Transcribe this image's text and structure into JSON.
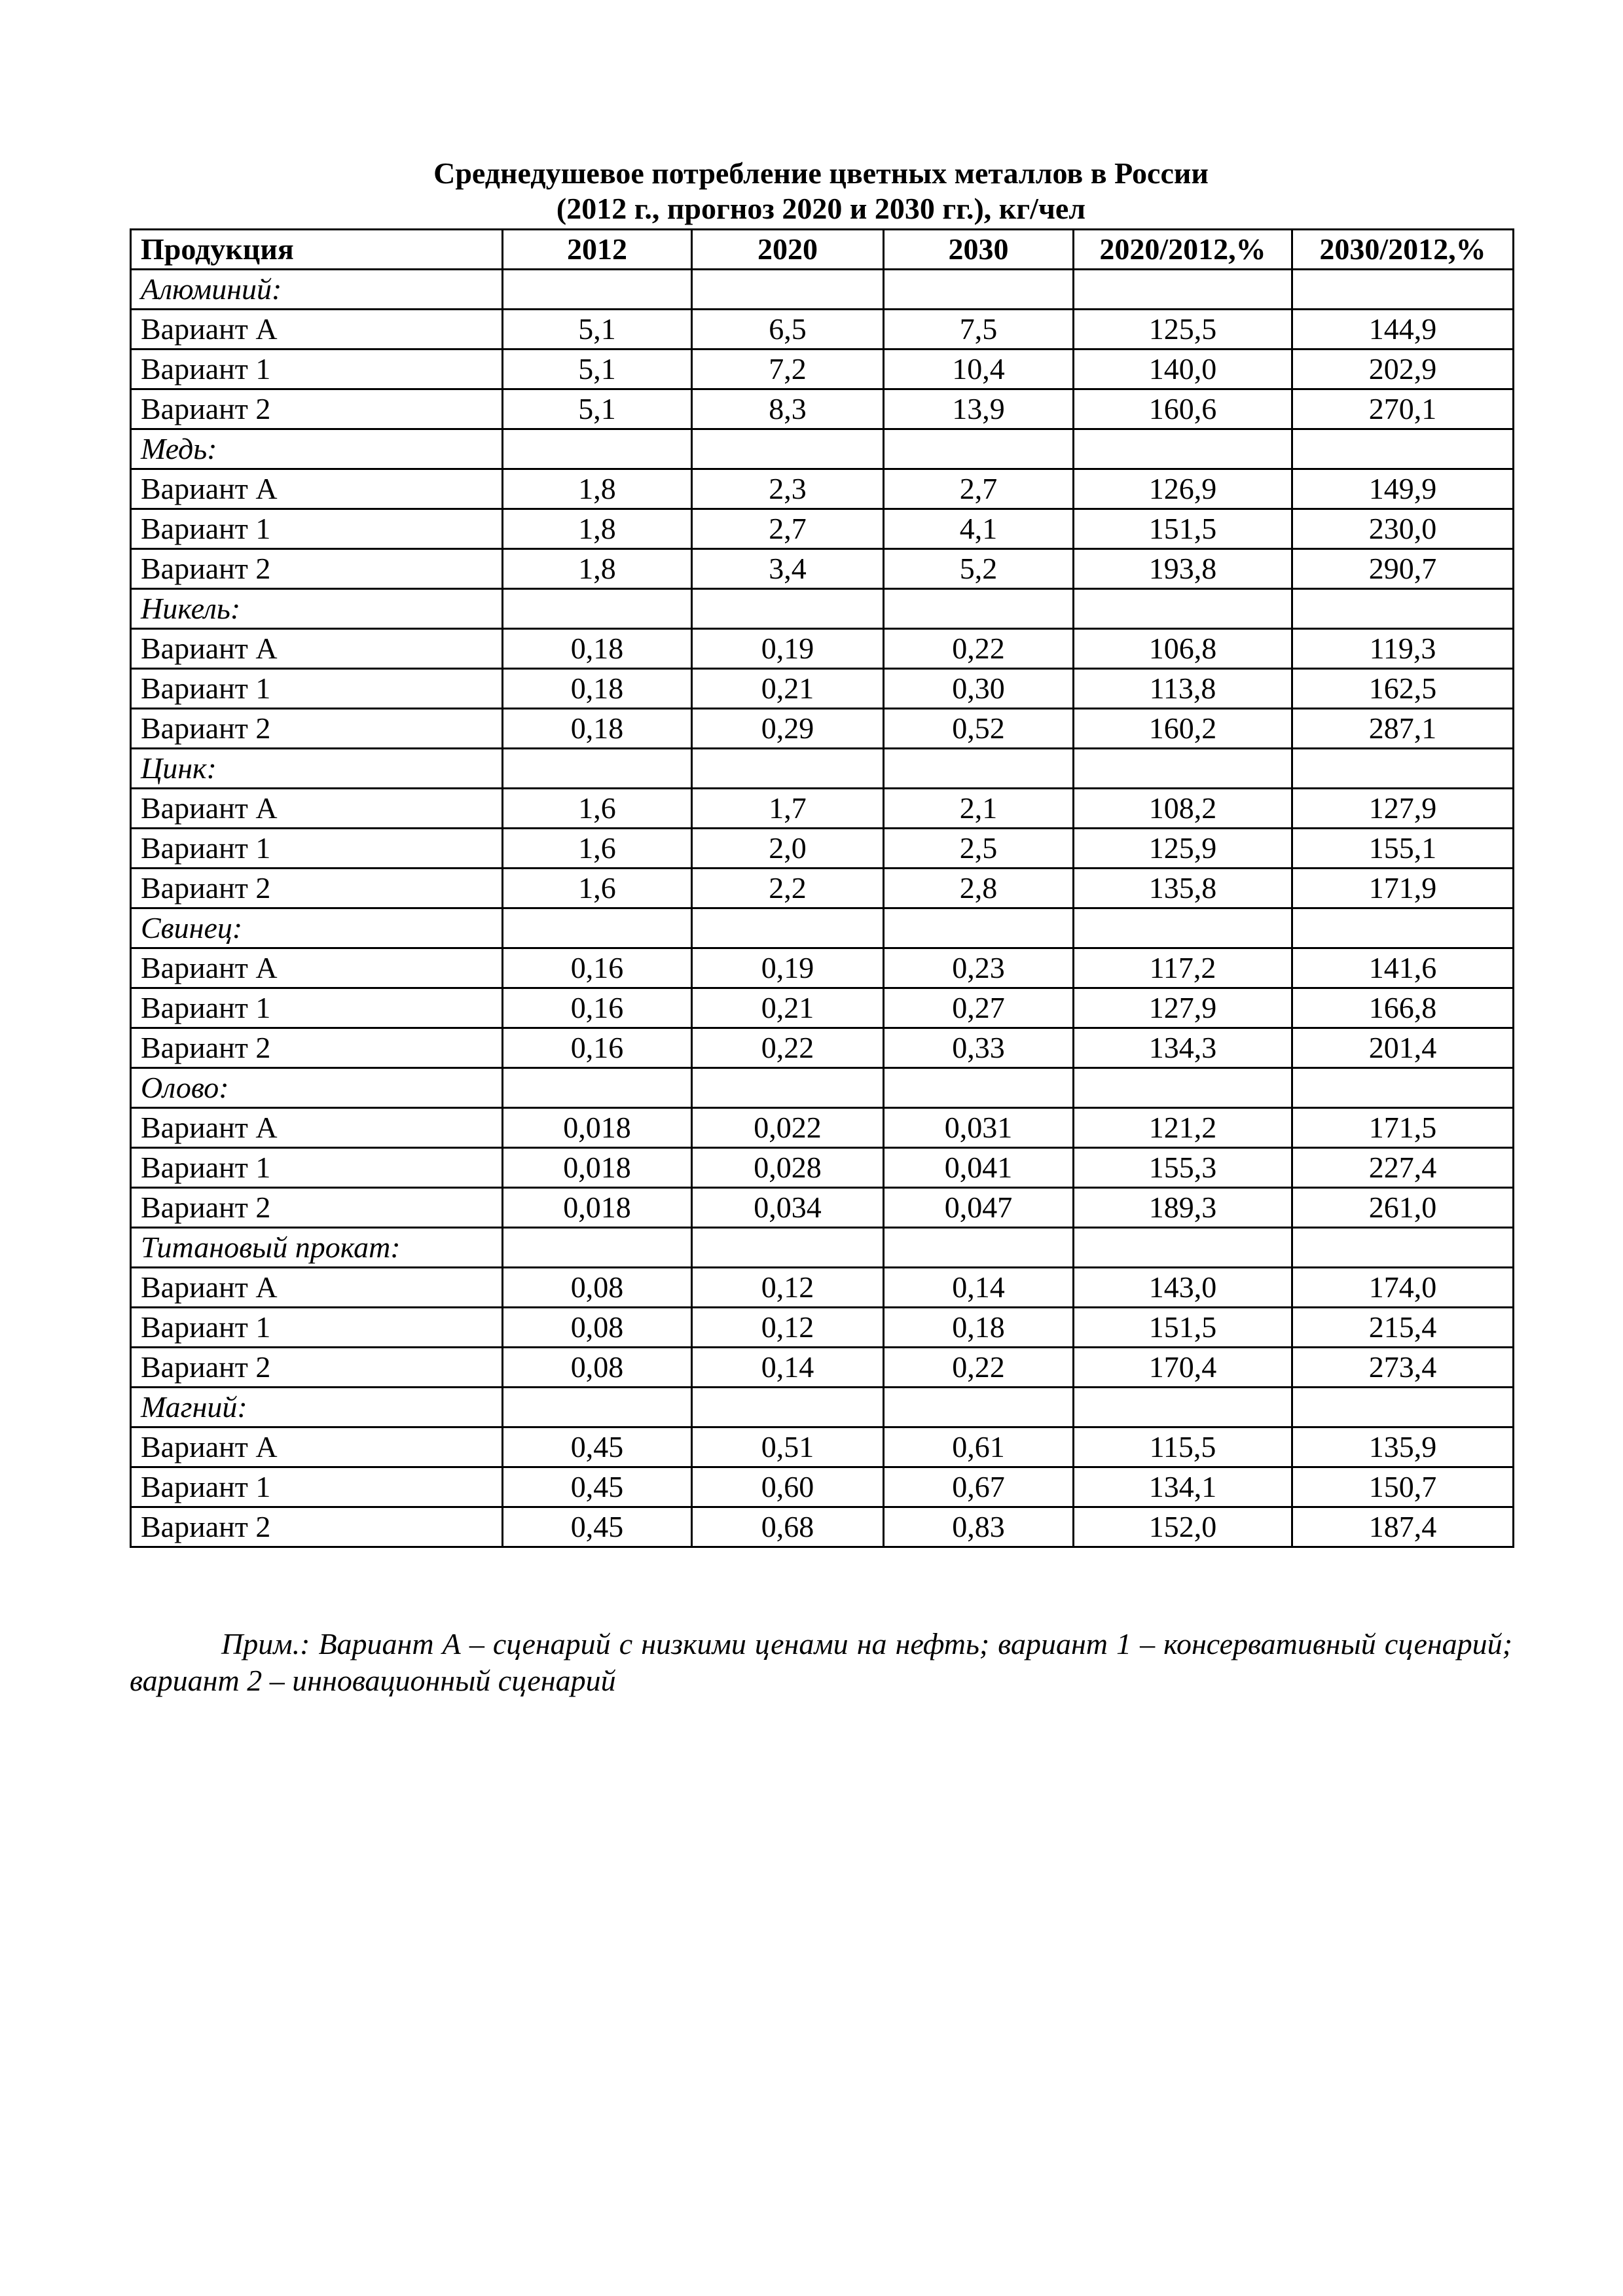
{
  "title": {
    "line1": "Среднедушевое потребление цветных металлов в России",
    "line2": "(2012 г., прогноз 2020 и 2030 гг.), кг/чел"
  },
  "table": {
    "headers": [
      "Продукция",
      "2012",
      "2020",
      "2030",
      "2020/2012,%",
      "2030/2012,%"
    ],
    "groups": [
      {
        "name": "Алюминий:",
        "rows": [
          [
            "Вариант А",
            "5,1",
            "6,5",
            "7,5",
            "125,5",
            "144,9"
          ],
          [
            "Вариант 1",
            "5,1",
            "7,2",
            "10,4",
            "140,0",
            "202,9"
          ],
          [
            "Вариант 2",
            "5,1",
            "8,3",
            "13,9",
            "160,6",
            "270,1"
          ]
        ]
      },
      {
        "name": "Медь:",
        "rows": [
          [
            "Вариант А",
            "1,8",
            "2,3",
            "2,7",
            "126,9",
            "149,9"
          ],
          [
            "Вариант 1",
            "1,8",
            "2,7",
            "4,1",
            "151,5",
            "230,0"
          ],
          [
            "Вариант 2",
            "1,8",
            "3,4",
            "5,2",
            "193,8",
            "290,7"
          ]
        ]
      },
      {
        "name": "Никель:",
        "rows": [
          [
            "Вариант А",
            "0,18",
            "0,19",
            "0,22",
            "106,8",
            "119,3"
          ],
          [
            "Вариант 1",
            "0,18",
            "0,21",
            "0,30",
            "113,8",
            "162,5"
          ],
          [
            "Вариант 2",
            "0,18",
            "0,29",
            "0,52",
            "160,2",
            "287,1"
          ]
        ]
      },
      {
        "name": "Цинк:",
        "rows": [
          [
            "Вариант А",
            "1,6",
            "1,7",
            "2,1",
            "108,2",
            "127,9"
          ],
          [
            "Вариант 1",
            "1,6",
            "2,0",
            "2,5",
            "125,9",
            "155,1"
          ],
          [
            "Вариант 2",
            "1,6",
            "2,2",
            "2,8",
            "135,8",
            "171,9"
          ]
        ]
      },
      {
        "name": "Свинец:",
        "rows": [
          [
            "Вариант А",
            "0,16",
            "0,19",
            "0,23",
            "117,2",
            "141,6"
          ],
          [
            "Вариант 1",
            "0,16",
            "0,21",
            "0,27",
            "127,9",
            "166,8"
          ],
          [
            "Вариант 2",
            "0,16",
            "0,22",
            "0,33",
            "134,3",
            "201,4"
          ]
        ]
      },
      {
        "name": "Олово:",
        "rows": [
          [
            "Вариант А",
            "0,018",
            "0,022",
            "0,031",
            "121,2",
            "171,5"
          ],
          [
            "Вариант 1",
            "0,018",
            "0,028",
            "0,041",
            "155,3",
            "227,4"
          ],
          [
            "Вариант 2",
            "0,018",
            "0,034",
            "0,047",
            "189,3",
            "261,0"
          ]
        ]
      },
      {
        "name": "Титановый прокат:",
        "rows": [
          [
            "Вариант А",
            "0,08",
            "0,12",
            "0,14",
            "143,0",
            "174,0"
          ],
          [
            "Вариант 1",
            "0,08",
            "0,12",
            "0,18",
            "151,5",
            "215,4"
          ],
          [
            "Вариант 2",
            "0,08",
            "0,14",
            "0,22",
            "170,4",
            "273,4"
          ]
        ]
      },
      {
        "name": "Магний:",
        "rows": [
          [
            "Вариант А",
            "0,45",
            "0,51",
            "0,61",
            "115,5",
            "135,9"
          ],
          [
            "Вариант 1",
            "0,45",
            "0,60",
            "0,67",
            "134,1",
            "150,7"
          ],
          [
            "Вариант 2",
            "0,45",
            "0,68",
            "0,83",
            "152,0",
            "187,4"
          ]
        ]
      }
    ]
  },
  "note": "Прим.: Вариант А – сценарий с низкими ценами на нефть; вариант 1 – консервативный сценарий; вариант 2 – инновационный сценарий"
}
